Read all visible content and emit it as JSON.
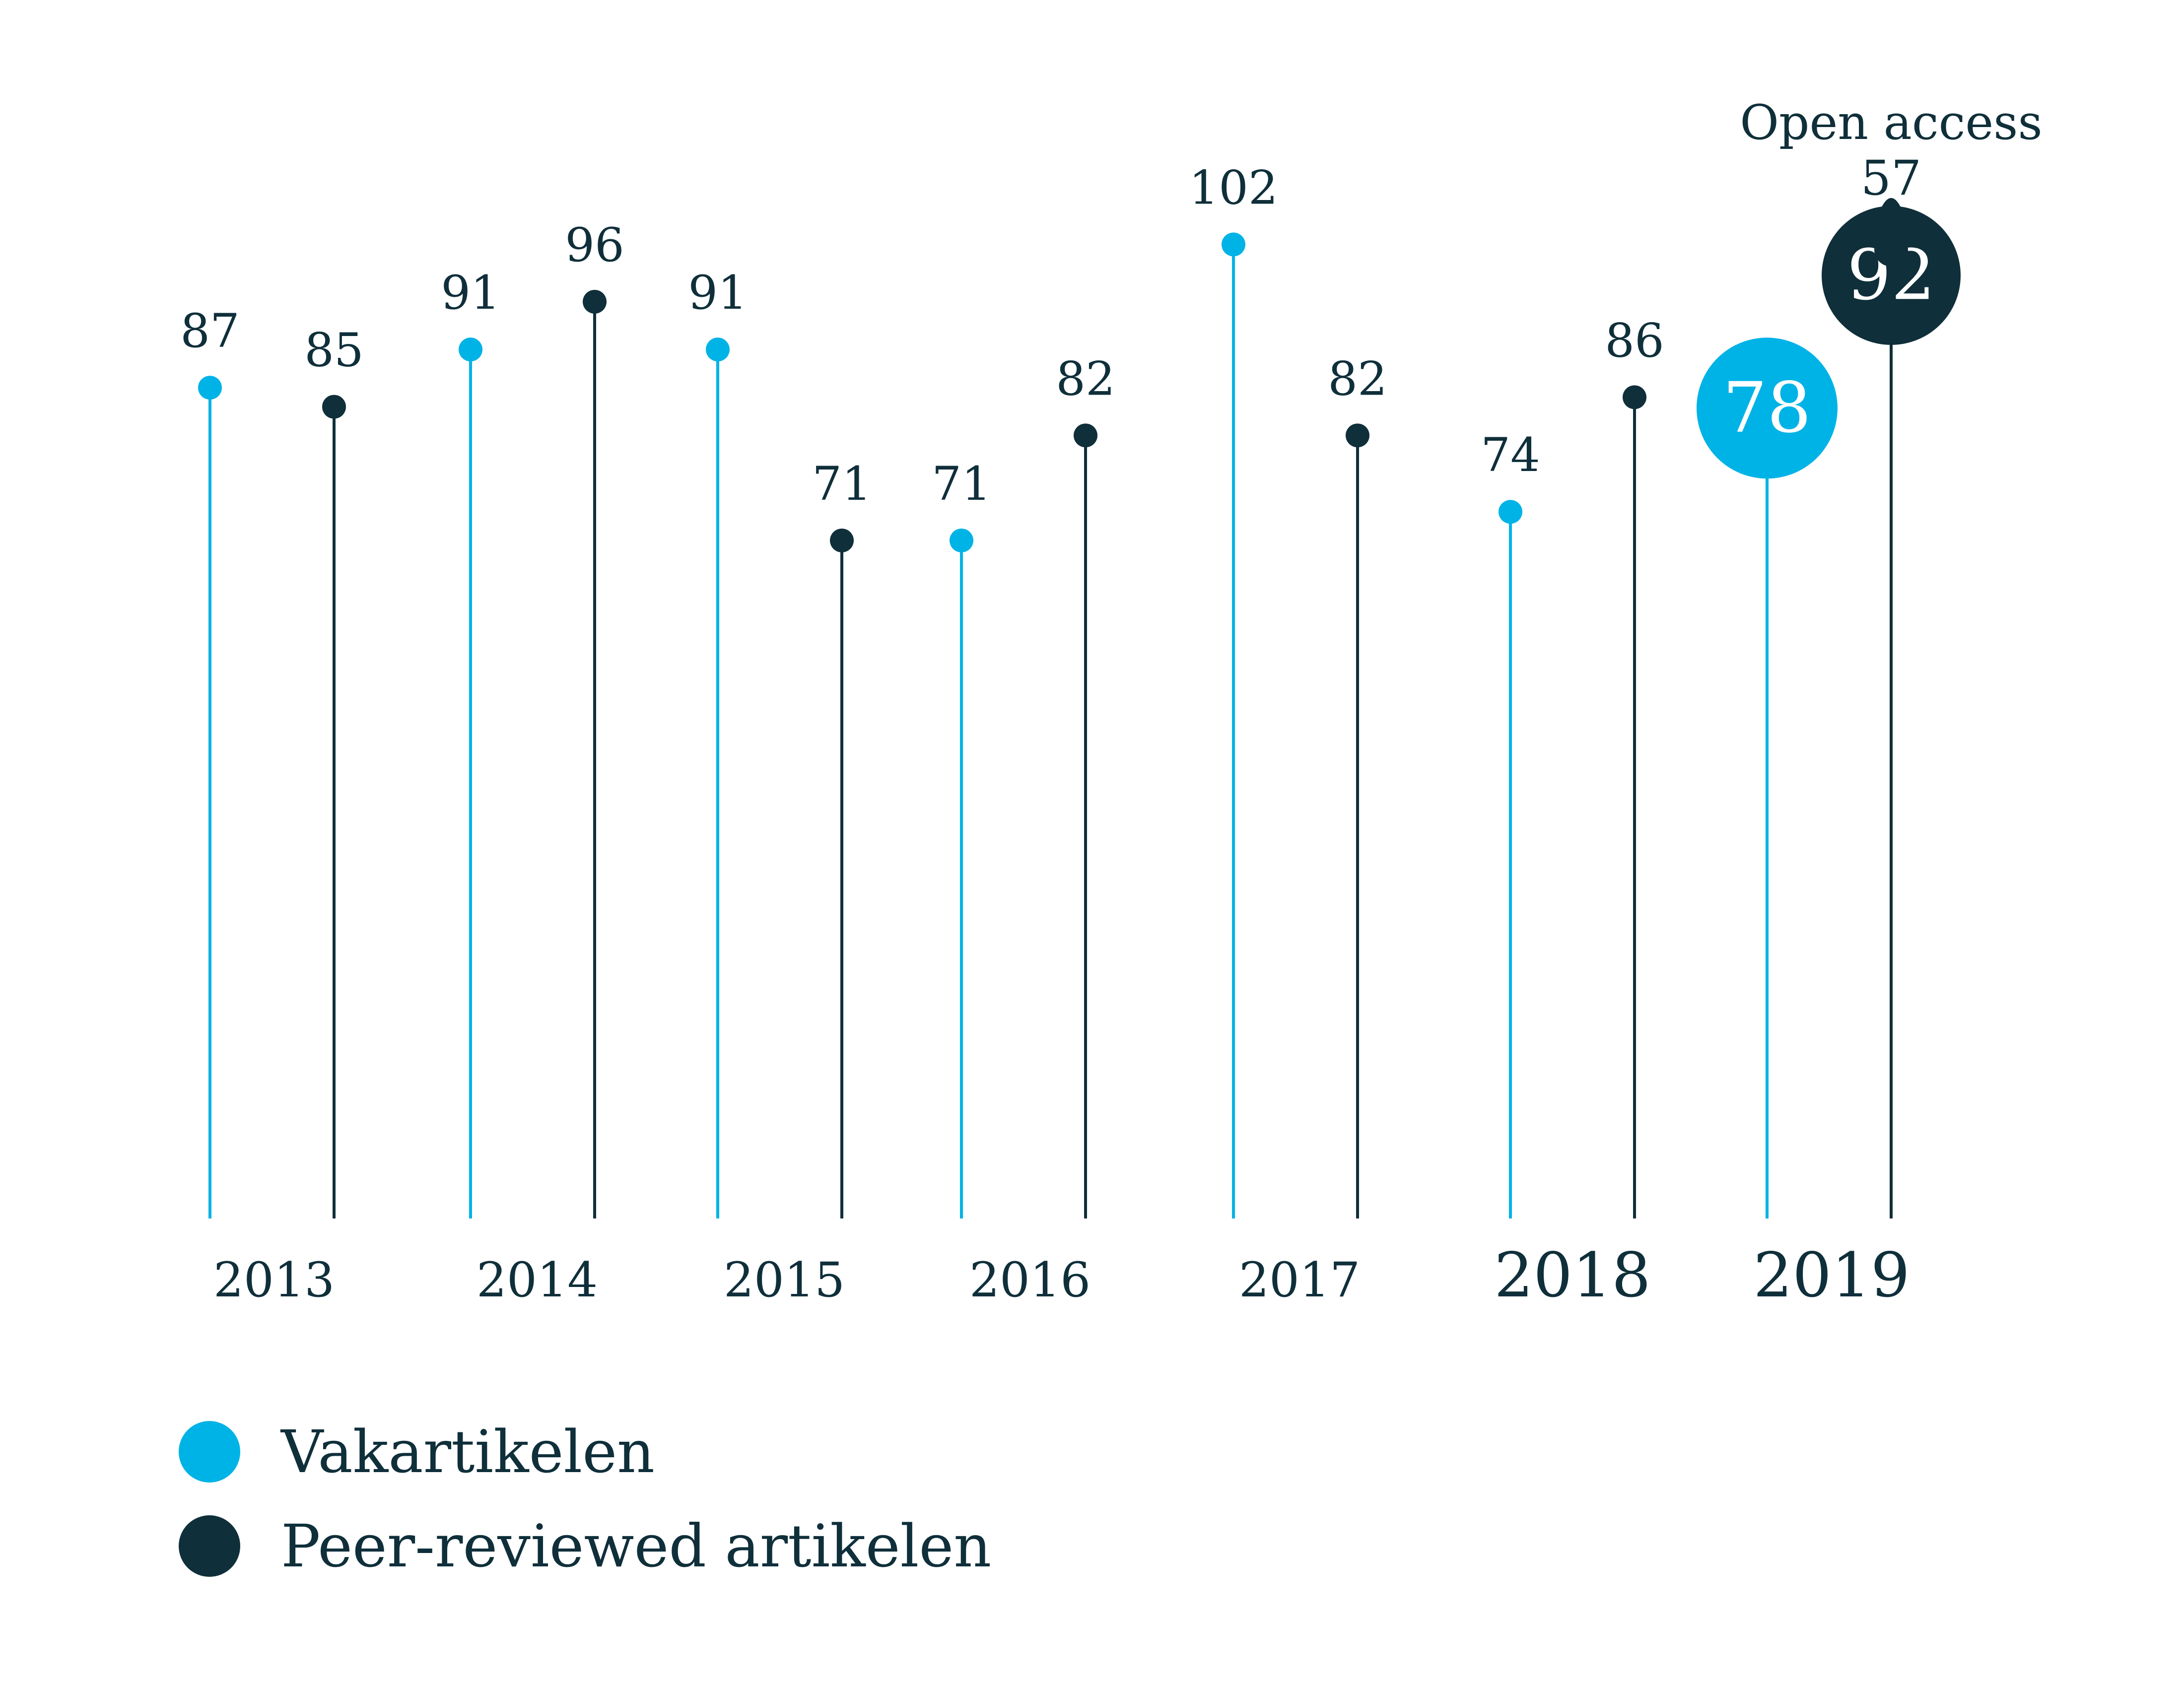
{
  "colors": {
    "vakartikelen": "#00b3e6",
    "peer_reviewed": "#0f2f3a",
    "text": "#0f2f3a"
  },
  "chart_data": {
    "type": "lollipop",
    "categories": [
      "2013",
      "2014",
      "2015",
      "2016",
      "2017",
      "2018",
      "2019"
    ],
    "series": [
      {
        "name": "Vakartikelen",
        "values": [
          87,
          91,
          91,
          71,
          102,
          74,
          78
        ]
      },
      {
        "name": "Peer-reviewed artikelen",
        "values": [
          85,
          96,
          71,
          82,
          82,
          86,
          92
        ]
      }
    ],
    "value_labels": [
      [
        "87",
        "85"
      ],
      [
        "91",
        "96"
      ],
      [
        "91",
        "71"
      ],
      [
        "71",
        "82"
      ],
      [
        "102",
        "82"
      ],
      [
        "74",
        "86"
      ],
      [
        "78",
        "92"
      ]
    ],
    "annotation": {
      "label": "Open access",
      "value": 57,
      "value_label": "57"
    },
    "ylim": [
      0,
      110
    ],
    "grid": false,
    "legend_position": "bottom-left"
  },
  "legend": [
    {
      "label": "Vakartikelen",
      "color": "#00b3e6"
    },
    {
      "label": "Peer-reviewed artikelen",
      "color": "#0f2f3a"
    }
  ]
}
